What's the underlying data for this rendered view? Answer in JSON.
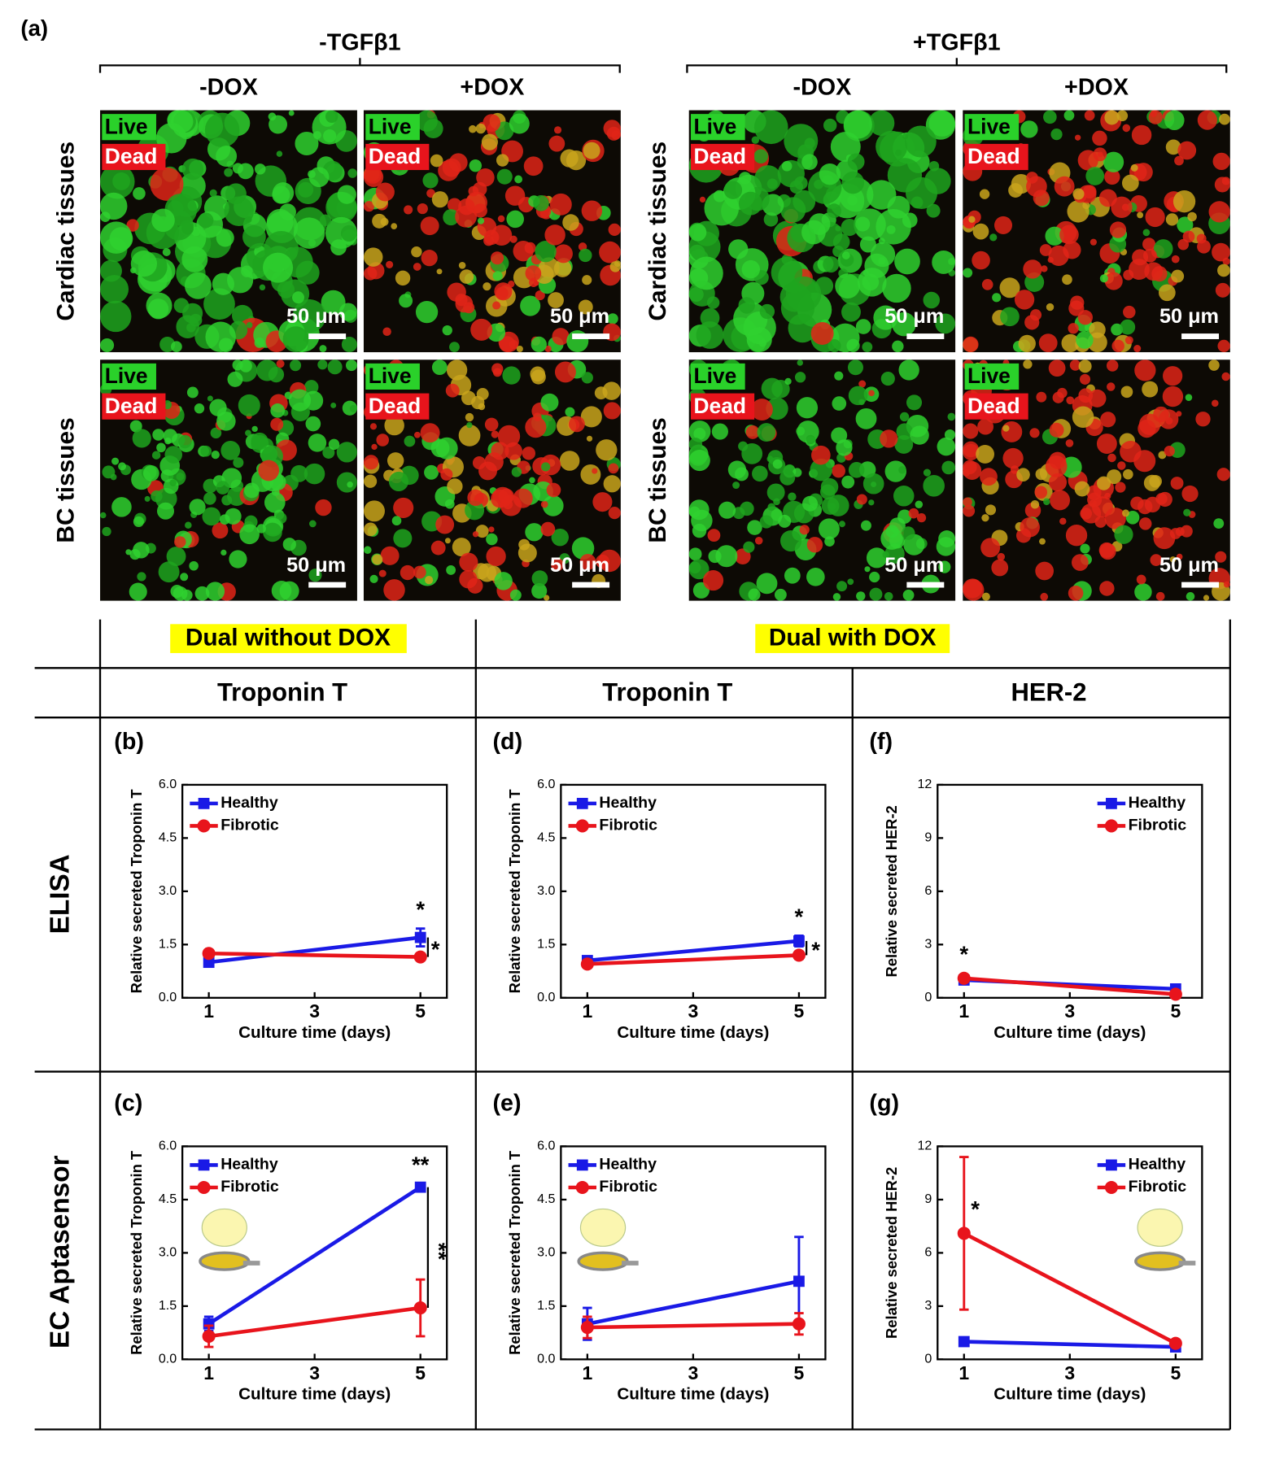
{
  "panel_a": {
    "label": "(a)",
    "groups": [
      {
        "title": "-TGFβ1",
        "columns": [
          "-DOX",
          "+DOX"
        ]
      },
      {
        "title": "+TGFβ1",
        "columns": [
          "-DOX",
          "+DOX"
        ]
      }
    ],
    "rows": [
      "Cardiac tissues",
      "BC tissues"
    ],
    "live": "Live",
    "dead": "Dead",
    "scale_bar": "50 μm"
  },
  "table": {
    "groups": [
      "Dual without DOX",
      "Dual with DOX"
    ],
    "columns": [
      "Troponin T",
      "Troponin T",
      "HER-2"
    ],
    "rows": [
      "ELISA",
      "EC Aptasensor"
    ]
  },
  "chart_data": [
    {
      "type": "line",
      "label": "(b)",
      "x_label": "Culture time (days)",
      "y_label": "Relative secreted Troponin T",
      "x": [
        1,
        5
      ],
      "xlim": [
        0.5,
        5.5
      ],
      "xticks": [
        1,
        3,
        5
      ],
      "ylim": [
        0,
        6
      ],
      "yticks": [
        {
          "value": 0,
          "label": "0.0"
        },
        1.5,
        {
          "value": 3,
          "label": "3.0"
        },
        4.5,
        {
          "value": 6,
          "label": "6.0"
        }
      ],
      "legend": "upper left",
      "annotations": [
        "*",
        "*"
      ],
      "series": [
        {
          "name": "Healthy",
          "color": "#1a1ae6",
          "marker": "square",
          "values": [
            1.0,
            1.7
          ],
          "errors": [
            0.1,
            0.25
          ]
        },
        {
          "name": "Fibrotic",
          "color": "#e8141c",
          "marker": "circle",
          "values": [
            1.25,
            1.15
          ],
          "errors": [
            0.1,
            0.1
          ]
        }
      ]
    },
    {
      "type": "line",
      "label": "(c)",
      "x_label": "Culture time (days)",
      "y_label": "Relative secreted Troponin T",
      "x": [
        1,
        5
      ],
      "xlim": [
        0.5,
        5.5
      ],
      "xticks": [
        1,
        3,
        5
      ],
      "ylim": [
        0,
        6
      ],
      "yticks": [
        {
          "value": 0,
          "label": "0.0"
        },
        1.5,
        {
          "value": 3,
          "label": "3.0"
        },
        4.5,
        {
          "value": 6,
          "label": "6.0"
        }
      ],
      "legend": "upper left",
      "annotations": [
        "**",
        "**"
      ],
      "series": [
        {
          "name": "Healthy",
          "color": "#1a1ae6",
          "marker": "square",
          "values": [
            1.0,
            4.85
          ],
          "errors": [
            0.2,
            0.1
          ]
        },
        {
          "name": "Fibrotic",
          "color": "#e8141c",
          "marker": "circle",
          "values": [
            0.65,
            1.45
          ],
          "errors": [
            0.3,
            0.8
          ]
        }
      ]
    },
    {
      "type": "line",
      "label": "(d)",
      "x_label": "Culture time (days)",
      "y_label": "Relative secreted Troponin T",
      "x": [
        1,
        5
      ],
      "xlim": [
        0.5,
        5.5
      ],
      "xticks": [
        1,
        3,
        5
      ],
      "ylim": [
        0,
        6
      ],
      "yticks": [
        {
          "value": 0,
          "label": "0.0"
        },
        1.5,
        {
          "value": 3,
          "label": "3.0"
        },
        4.5,
        {
          "value": 6,
          "label": "6.0"
        }
      ],
      "legend": "upper left",
      "annotations": [
        "*",
        "*"
      ],
      "series": [
        {
          "name": "Healthy",
          "color": "#1a1ae6",
          "marker": "square",
          "values": [
            1.05,
            1.6
          ],
          "errors": [
            0.1,
            0.15
          ]
        },
        {
          "name": "Fibrotic",
          "color": "#e8141c",
          "marker": "circle",
          "values": [
            0.95,
            1.2
          ],
          "errors": [
            0.1,
            0.1
          ]
        }
      ]
    },
    {
      "type": "line",
      "label": "(e)",
      "x_label": "Culture time (days)",
      "y_label": "Relative secreted Troponin T",
      "x": [
        1,
        5
      ],
      "xlim": [
        0.5,
        5.5
      ],
      "xticks": [
        1,
        3,
        5
      ],
      "ylim": [
        0,
        6
      ],
      "yticks": [
        {
          "value": 0,
          "label": "0.0"
        },
        1.5,
        {
          "value": 3,
          "label": "3.0"
        },
        4.5,
        {
          "value": 6,
          "label": "6.0"
        }
      ],
      "legend": "upper left",
      "annotations": [],
      "series": [
        {
          "name": "Healthy",
          "color": "#1a1ae6",
          "marker": "square",
          "values": [
            1.0,
            2.2
          ],
          "errors": [
            0.45,
            1.25
          ]
        },
        {
          "name": "Fibrotic",
          "color": "#e8141c",
          "marker": "circle",
          "values": [
            0.9,
            1.0
          ],
          "errors": [
            0.3,
            0.3
          ]
        }
      ]
    },
    {
      "type": "line",
      "label": "(f)",
      "x_label": "Culture time (days)",
      "y_label": "Relative secreted HER-2",
      "x": [
        1,
        5
      ],
      "xlim": [
        0.5,
        5.5
      ],
      "xticks": [
        1,
        3,
        5
      ],
      "ylim": [
        0,
        12
      ],
      "yticks": [
        0,
        3,
        6,
        9,
        12
      ],
      "legend": "upper right",
      "annotations": [
        "*"
      ],
      "series": [
        {
          "name": "Healthy",
          "color": "#1a1ae6",
          "marker": "square",
          "values": [
            1.0,
            0.5
          ],
          "errors": [
            0.15,
            0.1
          ]
        },
        {
          "name": "Fibrotic",
          "color": "#e8141c",
          "marker": "circle",
          "values": [
            1.1,
            0.2
          ],
          "errors": [
            0.2,
            0.1
          ]
        }
      ]
    },
    {
      "type": "line",
      "label": "(g)",
      "x_label": "Culture time (days)",
      "y_label": "Relative secreted HER-2",
      "x": [
        1,
        5
      ],
      "xlim": [
        0.5,
        5.5
      ],
      "xticks": [
        1,
        3,
        5
      ],
      "ylim": [
        0,
        12
      ],
      "yticks": [
        0,
        3,
        6,
        9,
        12
      ],
      "legend": "upper right",
      "annotations": [
        "*"
      ],
      "series": [
        {
          "name": "Healthy",
          "color": "#1a1ae6",
          "marker": "square",
          "values": [
            1.0,
            0.7
          ],
          "errors": [
            0.1,
            0.1
          ]
        },
        {
          "name": "Fibrotic",
          "color": "#e8141c",
          "marker": "circle",
          "values": [
            7.1,
            0.9
          ],
          "errors": [
            4.3,
            0.2
          ]
        }
      ]
    }
  ]
}
